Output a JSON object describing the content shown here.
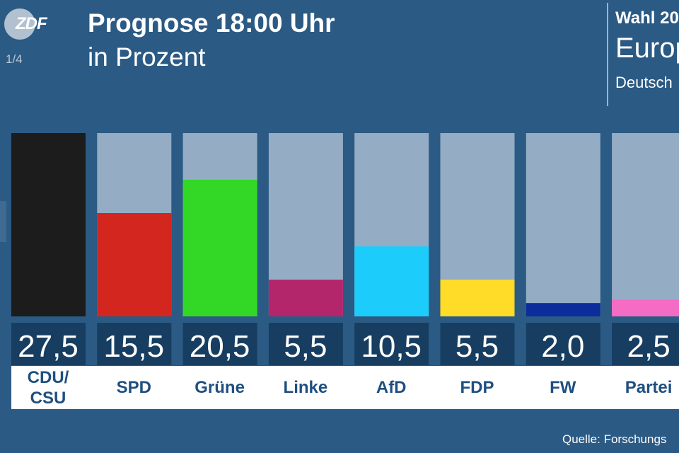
{
  "header": {
    "logo_text": "ZDF",
    "page_indicator": "1/4",
    "title": "Prognose 18:00 Uhr",
    "subtitle": "in Prozent"
  },
  "election": {
    "title": "Wahl 20",
    "name": "Europ",
    "region": "Deutsch"
  },
  "footer": {
    "source": "Quelle: Forschungs"
  },
  "chart_data": {
    "type": "bar",
    "title": "Prognose 18:00 Uhr",
    "subtitle": "in Prozent",
    "ylim": [
      0,
      27.5
    ],
    "grid": false,
    "categories": [
      "CDU/ CSU",
      "SPD",
      "Grüne",
      "Linke",
      "AfD",
      "FDP",
      "FW",
      "Partei"
    ],
    "values": [
      27.5,
      15.5,
      20.5,
      5.5,
      10.5,
      5.5,
      2.0,
      2.5
    ],
    "value_labels": [
      "27,5",
      "15,5",
      "20,5",
      "5,5",
      "10,5",
      "5,5",
      "2,0",
      "2,5"
    ],
    "colors": [
      "#1c1c1c",
      "#d2261e",
      "#33d827",
      "#b3266b",
      "#1ccdfb",
      "#fedc27",
      "#0c2c9c",
      "#f46cc4"
    ],
    "track_color": "#94adc4",
    "value_box_color": "#173e61",
    "label_color": "#1f4f80"
  }
}
